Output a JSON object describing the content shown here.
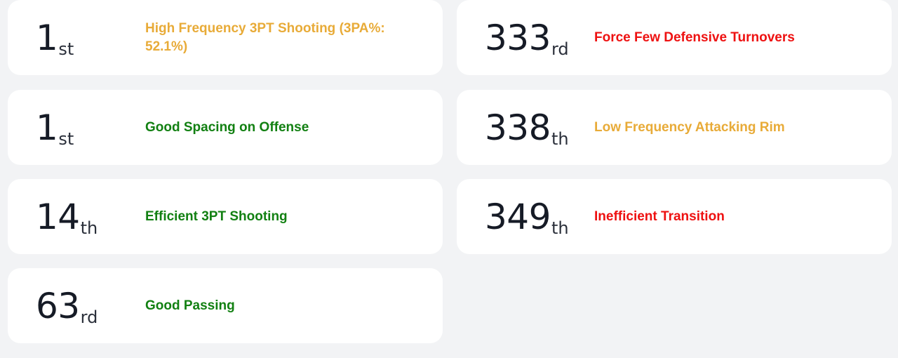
{
  "cards": [
    {
      "rank": "1",
      "suffix": "st",
      "label": "High Frequency 3PT Shooting (3PA%: 52.1%)",
      "tone": "neutral"
    },
    {
      "rank": "333",
      "suffix": "rd",
      "label": "Force Few Defensive Turnovers",
      "tone": "bad"
    },
    {
      "rank": "1",
      "suffix": "st",
      "label": "Good Spacing on Offense",
      "tone": "good"
    },
    {
      "rank": "338",
      "suffix": "th",
      "label": "Low Frequency Attacking Rim",
      "tone": "neutral"
    },
    {
      "rank": "14",
      "suffix": "th",
      "label": "Efficient 3PT Shooting",
      "tone": "good"
    },
    {
      "rank": "349",
      "suffix": "th",
      "label": "Inefficient Transition",
      "tone": "bad"
    },
    {
      "rank": "63",
      "suffix": "rd",
      "label": "Good Passing",
      "tone": "good"
    }
  ],
  "colors": {
    "good": "#128012",
    "bad": "#ee1111",
    "neutral": "#e8ab38",
    "card_bg": "#ffffff",
    "page_bg": "#f2f3f5",
    "rank_text": "#161b26"
  }
}
